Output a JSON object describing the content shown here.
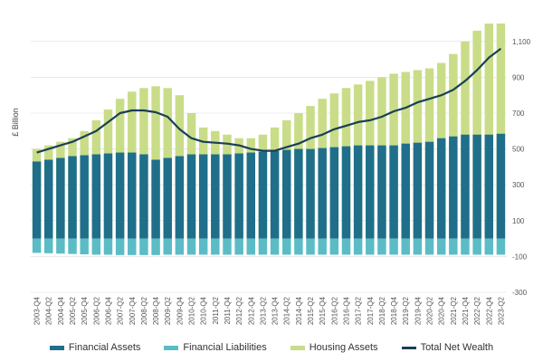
{
  "chart_data": {
    "type": "bar",
    "ylabel": "£ Billion",
    "ylim": [
      -300,
      1200
    ],
    "yticks": [
      1100,
      900,
      700,
      500,
      300,
      100,
      -100,
      -300
    ],
    "ytick_labels": [
      "1,100",
      "900",
      "700",
      "500",
      "300",
      "100",
      "-100",
      "-300"
    ],
    "grid": true,
    "legend_position": "bottom",
    "x": [
      "2003-Q4",
      "2004-Q2",
      "2004-Q4",
      "2005-Q2",
      "2005-Q4",
      "2006-Q2",
      "2006-Q4",
      "2007-Q2",
      "2007-Q4",
      "2008-Q2",
      "2008-Q4",
      "2009-Q2",
      "2009-Q4",
      "2010-Q2",
      "2010-Q4",
      "2011-Q2",
      "2011-Q4",
      "2012-Q2",
      "2012-Q4",
      "2013-Q2",
      "2013-Q4",
      "2014-Q2",
      "2014-Q4",
      "2015-Q2",
      "2015-Q4",
      "2016-Q2",
      "2016-Q4",
      "2017-Q2",
      "2017-Q4",
      "2018-Q2",
      "2018-Q4",
      "2019-Q2",
      "2019-Q4",
      "2020-Q2",
      "2020-Q4",
      "2021-Q2",
      "2021-Q4",
      "2022-Q2",
      "2022-Q4",
      "2023-Q2"
    ],
    "series": [
      {
        "name": "Financial Assets",
        "kind": "bar",
        "color": "#1f6f8b",
        "values": [
          430,
          440,
          450,
          460,
          465,
          470,
          475,
          480,
          480,
          470,
          440,
          450,
          460,
          470,
          470,
          470,
          470,
          475,
          480,
          485,
          490,
          495,
          500,
          500,
          505,
          510,
          515,
          520,
          520,
          520,
          520,
          530,
          535,
          540,
          560,
          570,
          580,
          580,
          580,
          585
        ]
      },
      {
        "name": "Financial Liabilities",
        "kind": "bar",
        "color": "#5bbcc6",
        "values": [
          -80,
          -82,
          -84,
          -86,
          -88,
          -90,
          -90,
          -92,
          -92,
          -92,
          -92,
          -90,
          -90,
          -90,
          -90,
          -90,
          -90,
          -90,
          -90,
          -90,
          -90,
          -90,
          -90,
          -90,
          -90,
          -90,
          -90,
          -90,
          -90,
          -90,
          -90,
          -90,
          -90,
          -90,
          -90,
          -90,
          -90,
          -90,
          -90,
          -90
        ]
      },
      {
        "name": "Housing Assets",
        "kind": "bar",
        "color": "#c9dd88",
        "values": [
          500,
          520,
          540,
          560,
          600,
          660,
          720,
          780,
          820,
          840,
          850,
          840,
          800,
          700,
          620,
          600,
          580,
          560,
          560,
          580,
          620,
          660,
          700,
          740,
          780,
          810,
          840,
          860,
          880,
          900,
          920,
          930,
          940,
          950,
          980,
          1030,
          1100,
          1160,
          1200,
          1200
        ]
      },
      {
        "name": "Total Net Wealth",
        "kind": "line",
        "color": "#1b3f55",
        "values": [
          480,
          500,
          520,
          540,
          570,
          600,
          650,
          700,
          715,
          715,
          705,
          680,
          610,
          560,
          540,
          535,
          530,
          520,
          500,
          490,
          490,
          510,
          530,
          560,
          580,
          610,
          630,
          650,
          660,
          680,
          710,
          730,
          760,
          780,
          800,
          830,
          880,
          940,
          1010,
          1060
        ]
      }
    ]
  }
}
